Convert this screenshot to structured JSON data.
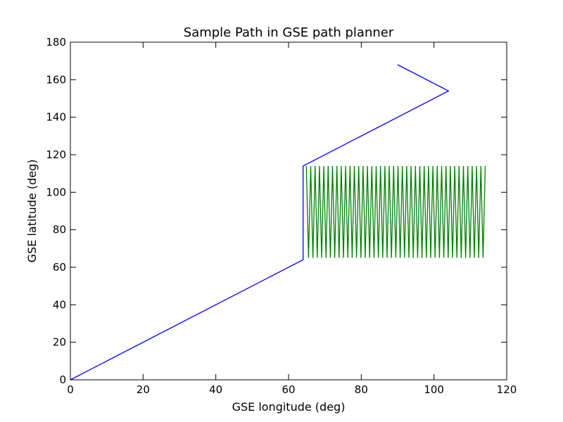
{
  "chart_data": {
    "type": "line",
    "title": "Sample Path in GSE path planner",
    "xlabel": "GSE longitude (deg)",
    "ylabel": "GSE latitude (deg)",
    "xlim": [
      0,
      120
    ],
    "ylim": [
      0,
      180
    ],
    "x_ticks": [
      0,
      20,
      40,
      60,
      80,
      100,
      120
    ],
    "y_ticks": [
      0,
      20,
      40,
      60,
      80,
      100,
      120,
      140,
      160,
      180
    ],
    "grid": false,
    "legend": "none",
    "series": [
      {
        "color": "#0000ff",
        "points": [
          [
            0,
            0
          ],
          [
            64,
            64
          ],
          [
            64,
            114
          ],
          [
            104,
            154
          ],
          [
            90,
            168
          ]
        ]
      },
      {
        "color": "#008000",
        "style": "zigzag",
        "x_start": 64.9,
        "x_end": 114.1,
        "x_step": 0.6,
        "y_low": 65,
        "y_high": 114
      }
    ]
  }
}
